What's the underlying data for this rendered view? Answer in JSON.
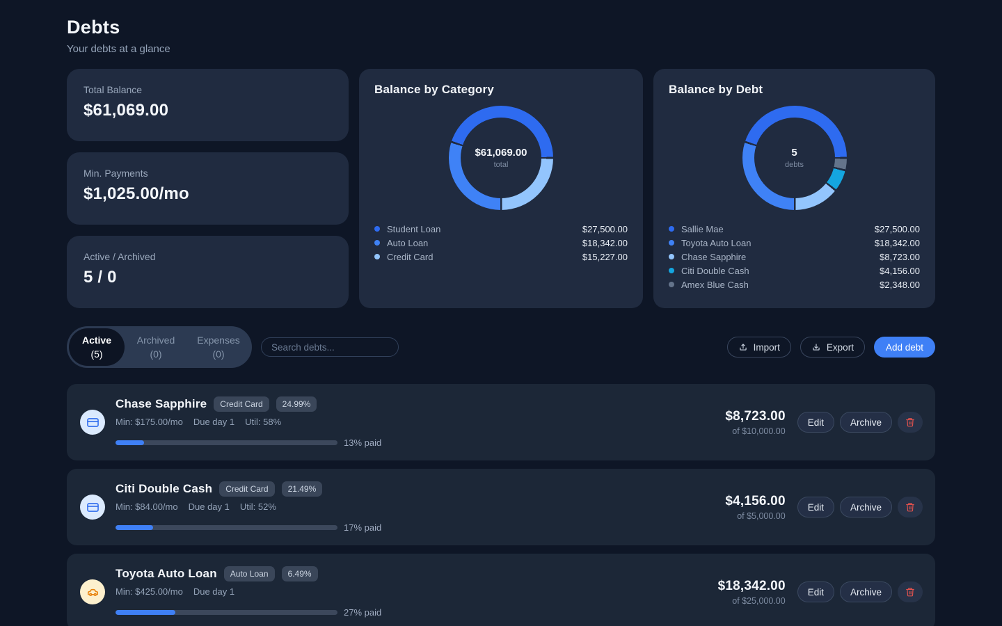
{
  "page": {
    "title": "Debts",
    "subtitle": "Your debts at a glance"
  },
  "stats": [
    {
      "label": "Total Balance",
      "value": "$61,069.00"
    },
    {
      "label": "Min. Payments",
      "value": "$1,025.00/mo"
    },
    {
      "label": "Active / Archived",
      "value": "5 / 0"
    }
  ],
  "chart_data": [
    {
      "type": "pie",
      "variant": "donut",
      "title": "Balance by Category",
      "center_value": "$61,069.00",
      "center_label": "total",
      "total": 61069.0,
      "start": "east",
      "direction": "counterclockwise",
      "legend_position": "bottom",
      "segments": [
        {
          "label": "Student Loan",
          "value": 27500.0,
          "display": "$27,500.00",
          "color": "#2e6bf0"
        },
        {
          "label": "Auto Loan",
          "value": 18342.0,
          "display": "$18,342.00",
          "color": "#3f82f6"
        },
        {
          "label": "Credit Card",
          "value": 15227.0,
          "display": "$15,227.00",
          "color": "#93c5fd"
        }
      ]
    },
    {
      "type": "pie",
      "variant": "donut",
      "title": "Balance by Debt",
      "center_value": "5",
      "center_label": "debts",
      "total": 61069.0,
      "start": "east",
      "direction": "counterclockwise",
      "legend_position": "bottom",
      "segments": [
        {
          "label": "Sallie Mae",
          "value": 27500.0,
          "display": "$27,500.00",
          "color": "#2e6bf0"
        },
        {
          "label": "Toyota Auto Loan",
          "value": 18342.0,
          "display": "$18,342.00",
          "color": "#3f82f6"
        },
        {
          "label": "Chase Sapphire",
          "value": 8723.0,
          "display": "$8,723.00",
          "color": "#93c5fd"
        },
        {
          "label": "Citi Double Cash",
          "value": 4156.0,
          "display": "$4,156.00",
          "color": "#14a6e0"
        },
        {
          "label": "Amex Blue Cash",
          "value": 2348.0,
          "display": "$2,348.00",
          "color": "#64748b"
        }
      ]
    }
  ],
  "toolbar": {
    "tabs": [
      {
        "label": "Active",
        "count": "(5)",
        "active": true
      },
      {
        "label": "Archived",
        "count": "(0)",
        "active": false
      },
      {
        "label": "Expenses",
        "count": "(0)",
        "active": false
      }
    ],
    "search_placeholder": "Search debts...",
    "import_label": "Import",
    "export_label": "Export",
    "add_debt_label": "Add debt"
  },
  "row_actions": {
    "edit": "Edit",
    "archive": "Archive"
  },
  "icons": {
    "import": "upload-tray-arrow-up",
    "export": "download-tray-arrow-down",
    "delete": "trash-icon",
    "credit_card_rows": "credit-card-icon",
    "auto_loan_row": "car-icon",
    "legend_marker": "colored-dot"
  },
  "debts": [
    {
      "name": "Chase Sapphire",
      "category": "Credit Card",
      "apr": "24.99%",
      "icon": "credit-card",
      "min_label": "Min: $175.00/mo",
      "due_label": "Due day 1",
      "util_label": "Util: 58%",
      "progress_pct": 13,
      "progress_label": "13% paid",
      "balance": "$8,723.00",
      "of_label": "of $10,000.00"
    },
    {
      "name": "Citi Double Cash",
      "category": "Credit Card",
      "apr": "21.49%",
      "icon": "credit-card",
      "min_label": "Min: $84.00/mo",
      "due_label": "Due day 1",
      "util_label": "Util: 52%",
      "progress_pct": 17,
      "progress_label": "17% paid",
      "balance": "$4,156.00",
      "of_label": "of $5,000.00"
    },
    {
      "name": "Toyota Auto Loan",
      "category": "Auto Loan",
      "apr": "6.49%",
      "icon": "car",
      "min_label": "Min: $425.00/mo",
      "due_label": "Due day 1",
      "util_label": "",
      "progress_pct": 27,
      "progress_label": "27% paid",
      "balance": "$18,342.00",
      "of_label": "of $25,000.00"
    }
  ]
}
